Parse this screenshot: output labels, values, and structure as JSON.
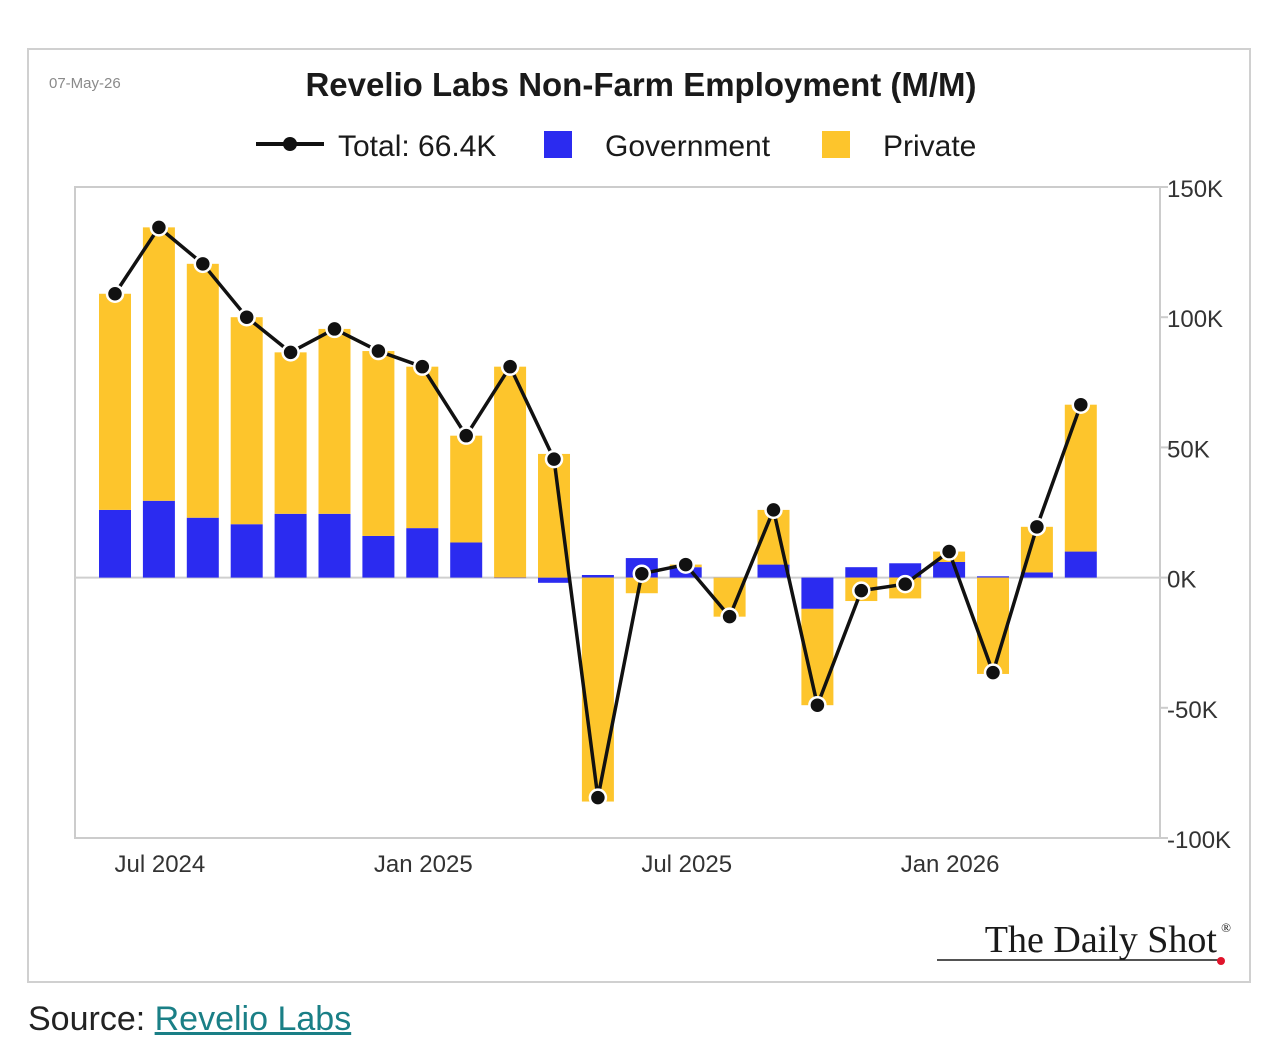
{
  "date_stamp": "07-May-26",
  "source": {
    "prefix": "Source: ",
    "link_text": "Revelio Labs"
  },
  "brand": "The Daily Shot",
  "brand_mark": "®",
  "colors": {
    "government": "#2b2bf0",
    "private": "#fdc52c",
    "total_line": "#111111",
    "grid_zero": "#cfcfcf",
    "frame": "#cccccc",
    "brand_dot": "#e0142b",
    "link": "#1a7f86"
  },
  "chart_data": {
    "type": "bar",
    "stacked": true,
    "title": "Revelio Labs Non-Farm Employment (M/M)",
    "legend": {
      "placement": "top-center",
      "entries": [
        "Total: 66.4K",
        "Government",
        "Private"
      ]
    },
    "x_tick_labels": [
      "Jul 2024",
      "Jan 2025",
      "Jul 2025",
      "Jan 2026"
    ],
    "y_tick_labels": [
      "150K",
      "100K",
      "50K",
      "0K",
      "-50K",
      "-100K"
    ],
    "y_ticks": [
      150,
      100,
      50,
      0,
      -50,
      -100
    ],
    "ylim": [
      -100,
      150
    ],
    "y_axis_side": "right",
    "y_unit": "thousands",
    "grid": false,
    "categories": [
      "2024-06",
      "2024-07",
      "2024-08",
      "2024-09",
      "2024-10",
      "2024-11",
      "2024-12",
      "2025-01",
      "2025-02",
      "2025-03",
      "2025-04",
      "2025-05",
      "2025-06",
      "2025-07",
      "2025-08",
      "2025-09",
      "2025-10",
      "2025-11",
      "2025-12",
      "2026-01",
      "2026-02",
      "2026-03",
      "2026-04"
    ],
    "series": [
      {
        "name": "Government",
        "values": [
          26,
          29.5,
          23,
          20.5,
          24.5,
          24.5,
          16,
          19,
          13.5,
          0,
          -2,
          1,
          7.5,
          4,
          0,
          5,
          -12,
          4,
          5.5,
          6,
          0.5,
          2,
          10
        ]
      },
      {
        "name": "Private",
        "values": [
          83,
          105,
          97.5,
          79.5,
          62,
          71,
          71,
          62,
          41,
          81,
          47.5,
          -86,
          -6,
          1,
          -15,
          21,
          -37,
          -9,
          -8,
          4,
          -37,
          17.5,
          56.4
        ]
      },
      {
        "name": "Total",
        "values": [
          109,
          134.5,
          120.5,
          100,
          86.5,
          95.5,
          87,
          81,
          54.5,
          81,
          45.5,
          -84.5,
          1.5,
          5,
          -15,
          26,
          -49,
          -5,
          -2.5,
          10,
          -36.5,
          19.5,
          66.4
        ]
      }
    ]
  }
}
